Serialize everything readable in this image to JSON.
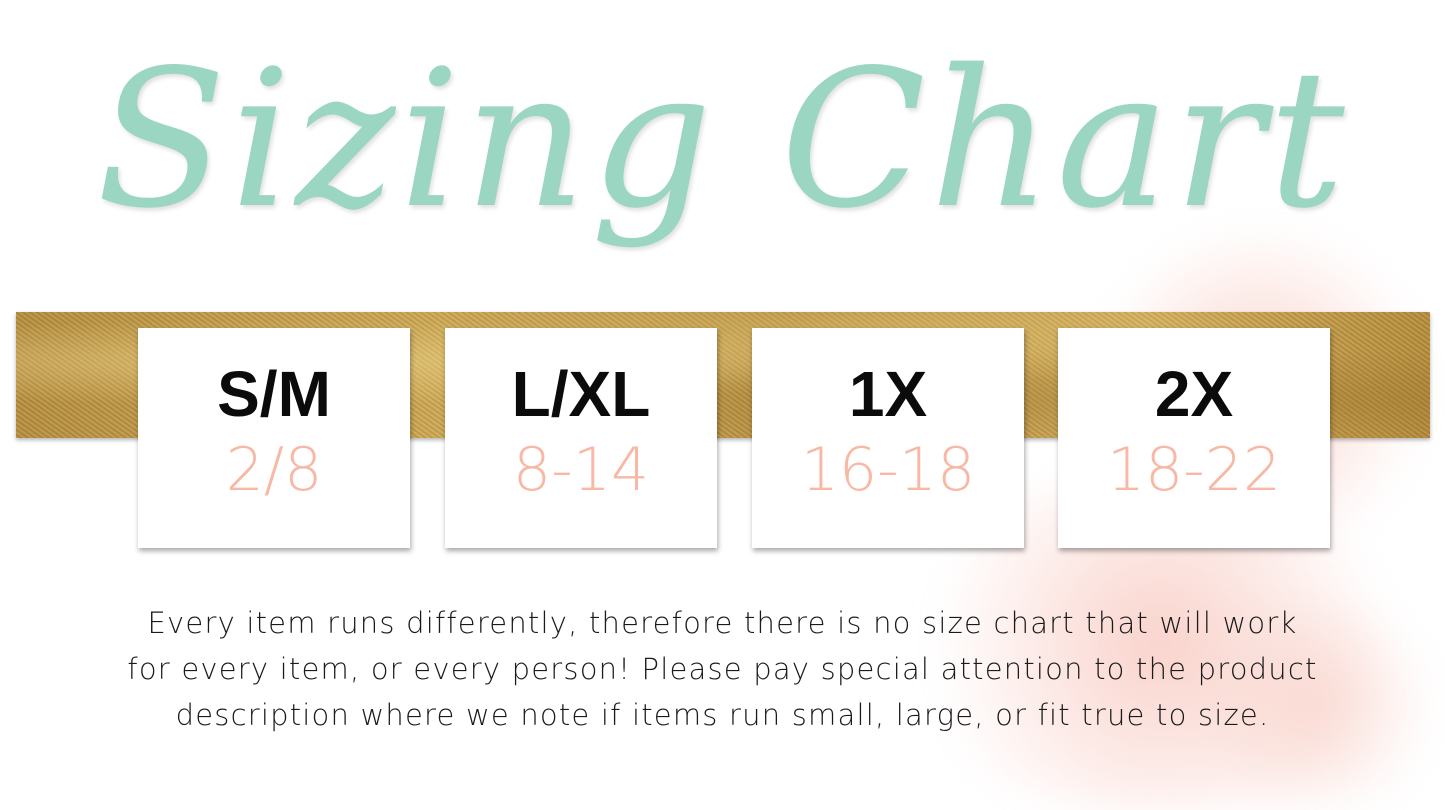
{
  "title": "Sizing Chart",
  "colors": {
    "title": "#9ad6c2",
    "band": "#c3a04e",
    "size": "#0b0b0b",
    "range": "#f7b9a5",
    "splash": "#f8cfc6"
  },
  "sizes": [
    {
      "label": "S/M",
      "range": "2/8"
    },
    {
      "label": "L/XL",
      "range": "8-14"
    },
    {
      "label": "1X",
      "range": "16-18"
    },
    {
      "label": "2X",
      "range": "18-22"
    }
  ],
  "note": {
    "line1": "Every item runs differently, therefore there is no size chart that will work",
    "line2": "for every item, or every person! Please pay special attention to the product",
    "line3": "description where we note if items run small, large, or fit true to size."
  }
}
